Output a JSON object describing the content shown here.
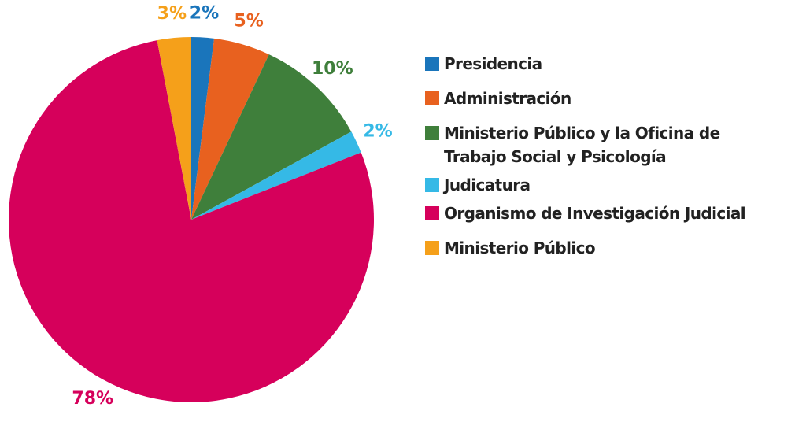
{
  "chart_data": {
    "type": "pie",
    "categories": [
      "Presidencia",
      "Administración",
      "Ministerio Público y la Oficina de Trabajo Social y Psicología",
      "Judicatura",
      "Organismo de Investigación Judicial",
      "Ministerio Público"
    ],
    "values": [
      2,
      5,
      10,
      2,
      78,
      3
    ],
    "value_labels": [
      "2%",
      "5%",
      "10%",
      "2%",
      "78%",
      "3%"
    ],
    "colors": [
      "#1a75bb",
      "#e8611f",
      "#3f7f3b",
      "#35b9e6",
      "#d6005b",
      "#f5a01a"
    ],
    "legend": "right"
  }
}
